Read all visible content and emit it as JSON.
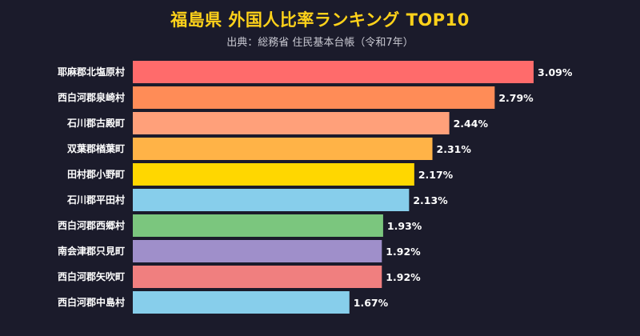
{
  "header": {
    "title": "福島県 外国人比率ランキング TOP10",
    "subtitle": "出典：総務省 住民基本台帳（令和7年）"
  },
  "chart_data": {
    "type": "bar",
    "orientation": "horizontal",
    "title": "福島県 外国人比率ランキング TOP10",
    "subtitle": "出典：総務省 住民基本台帳（令和7年）",
    "xlabel": "",
    "ylabel": "",
    "grid": false,
    "categories": [
      "耶麻郡北塩原村",
      "西白河郡泉崎村",
      "石川郡古殿町",
      "双葉郡楢葉町",
      "田村郡小野町",
      "石川郡平田村",
      "西白河郡西郷村",
      "南会津郡只見町",
      "西白河郡矢吹町",
      "西白河郡中島村"
    ],
    "values": [
      3.09,
      2.79,
      2.44,
      2.31,
      2.17,
      2.13,
      1.93,
      1.92,
      1.92,
      1.67
    ],
    "value_labels": [
      "3.09%",
      "2.79%",
      "2.44%",
      "2.31%",
      "2.17%",
      "2.13%",
      "1.93%",
      "1.92%",
      "1.92%",
      "1.67%"
    ],
    "colors": [
      "#ff6b6b",
      "#ff8c57",
      "#ffa07a",
      "#ffb347",
      "#ffd700",
      "#87ceeb",
      "#7bc67e",
      "#9f8fca",
      "#f07f7f",
      "#87ceeb"
    ],
    "xlim": [
      0,
      3.09
    ]
  }
}
